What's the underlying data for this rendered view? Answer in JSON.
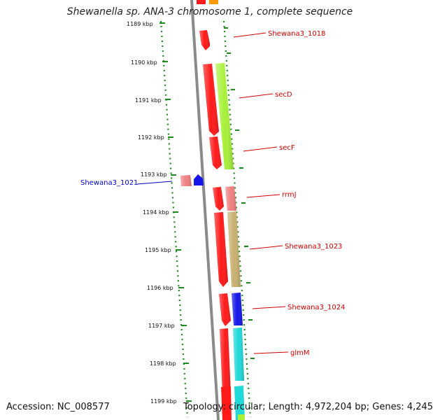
{
  "title": "Shewanella sp. ANA-3 chromosome 1, complete sequence",
  "accession_label": "Accession: NC_008577",
  "topology_label": "Topology: circular; Length: 4,972,204 bp; Genes: 4,245",
  "ticks": [
    "1189 kbp",
    "1190 kbp",
    "1191 kbp",
    "1192 kbp",
    "1193 kbp",
    "1194 kbp",
    "1195 kbp",
    "1196 kbp",
    "1197 kbp",
    "1198 kbp",
    "1199 kbp"
  ],
  "gene_labels": [
    {
      "text": "Shewana3_1018",
      "color": "#d40000"
    },
    {
      "text": "secD",
      "color": "#d40000"
    },
    {
      "text": "secF",
      "color": "#d40000"
    },
    {
      "text": "Shewana3_1021",
      "color": "#0000c8"
    },
    {
      "text": "rrmJ",
      "color": "#d40000"
    },
    {
      "text": "Shewana3_1023",
      "color": "#d40000"
    },
    {
      "text": "Shewana3_1024",
      "color": "#d40000"
    },
    {
      "text": "glmM",
      "color": "#d40000"
    }
  ],
  "colors": {
    "red": "#ff1a1a",
    "green": "#a8f03a",
    "pink": "#f08080",
    "olive": "#c8b070",
    "blue": "#1515e8",
    "cyan": "#20d8d8",
    "orange": "#ff9900",
    "backbone": "#8a8a8a",
    "dots": "#1a8a1a"
  }
}
